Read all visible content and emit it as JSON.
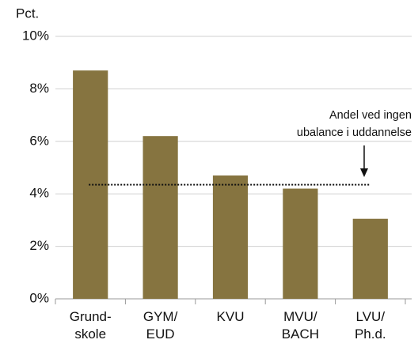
{
  "chart_data": {
    "type": "bar",
    "y_label": "Pct.",
    "categories": [
      [
        "Grund-",
        "skole"
      ],
      [
        "GYM/",
        "EUD"
      ],
      [
        "KVU"
      ],
      [
        "MVU/",
        "BACH"
      ],
      [
        "LVU/",
        "Ph.d."
      ]
    ],
    "values": [
      8.7,
      6.2,
      4.7,
      4.2,
      3.05
    ],
    "color": "#867440",
    "ylim": [
      0,
      10
    ],
    "yticks": [
      {
        "value": 0,
        "label": "0%"
      },
      {
        "value": 2,
        "label": "2%"
      },
      {
        "value": 4,
        "label": "4%"
      },
      {
        "value": 6,
        "label": "6%"
      },
      {
        "value": 8,
        "label": "8%"
      },
      {
        "value": 10,
        "label": "10%"
      }
    ],
    "grid": true,
    "reference_value": 4.35,
    "annotation": [
      "Andel ved ingen",
      "ubalance i uddannelse"
    ]
  }
}
